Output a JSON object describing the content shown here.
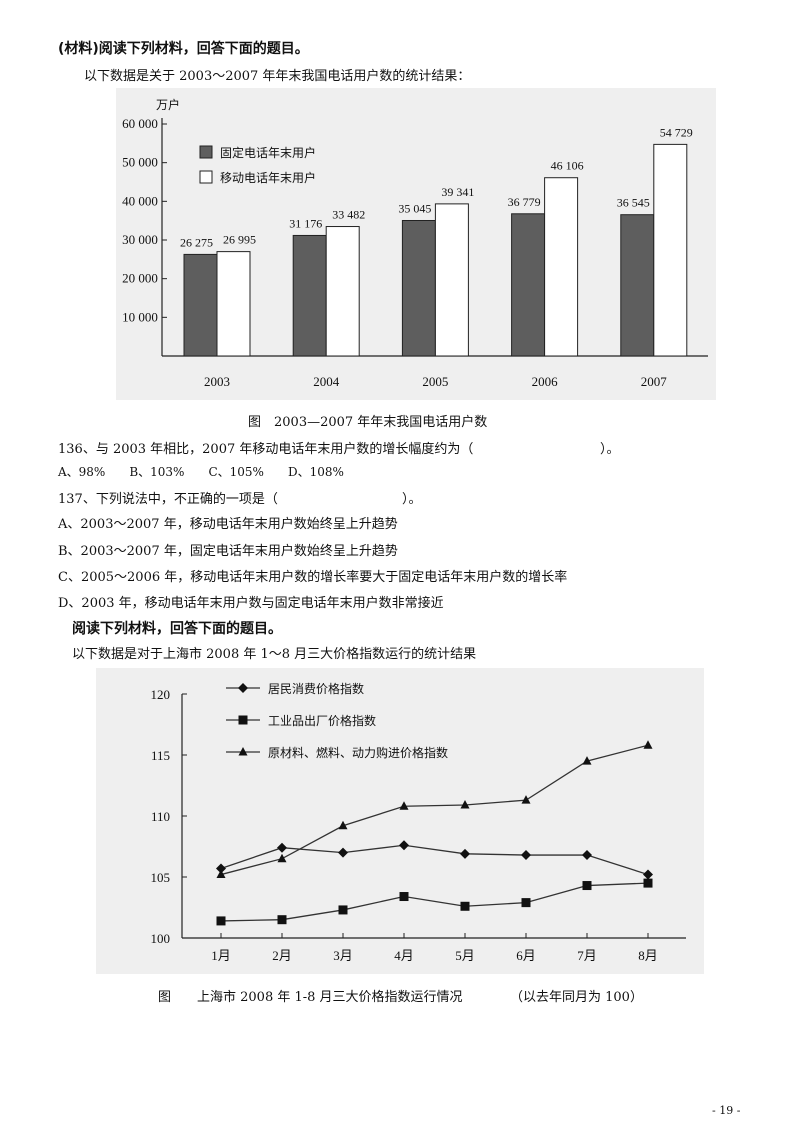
{
  "section1": {
    "heading": "(材料)阅读下列材料，回答下面的题目。",
    "intro": "以下数据是关于 2003～2007 年年末我国电话用户数的统计结果："
  },
  "chart1": {
    "unit": "万户",
    "caption": "图　2003—2007 年年末我国电话用户数"
  },
  "q136": {
    "stem": "136、与 2003 年相比，2007 年移动电话年末用户数的增长幅度约为（",
    "stem_end": "）。",
    "options": "A、98%　　B、103%　　C、105%　　D、108%"
  },
  "q137": {
    "stem": "137、下列说法中，不正确的一项是（",
    "stem_end": "）。",
    "option_a": "A、2003～2007 年，移动电话年末用户数始终呈上升趋势",
    "option_b": "B、2003～2007 年，固定电话年末用户数始终呈上升趋势",
    "option_c": "C、2005～2006 年，移动电话年末用户数的增长率要大于固定电话年末用户数的增长率",
    "option_d": "D、2003 年，移动电话年末用户数与固定电话年末用户数非常接近"
  },
  "section2": {
    "heading": "阅读下列材料，回答下面的题目。",
    "intro": "以下数据是对于上海市 2008 年 1～8 月三大价格指数运行的统计结果"
  },
  "chart2": {
    "caption": "图　　上海市 2008 年 1-8 月三大价格指数运行情况",
    "caption_note": "（以去年同月为 100）"
  },
  "page_number": "- 19 -",
  "chart_data": [
    {
      "type": "bar",
      "categories": [
        "2003",
        "2004",
        "2005",
        "2006",
        "2007"
      ],
      "series": [
        {
          "name": "固定电话年末用户",
          "values": [
            26275,
            31176,
            35045,
            36779,
            36545
          ],
          "labels": [
            "26 275",
            "31 176",
            "35 045",
            "36 779",
            "36 545"
          ],
          "color": "#5e5e5e"
        },
        {
          "name": "移动电话年末用户",
          "values": [
            26995,
            33482,
            39341,
            46106,
            54729
          ],
          "labels": [
            "26 995",
            "33 482",
            "39 341",
            "46 106",
            "54 729"
          ],
          "color": "#ffffff"
        }
      ],
      "ylabel": "万户",
      "ylim": [
        0,
        60000
      ],
      "yticks": [
        10000,
        20000,
        30000,
        40000,
        50000,
        60000
      ],
      "ytick_labels": [
        "10 000",
        "20 000",
        "30 000",
        "40 000",
        "50 000",
        "60 000"
      ],
      "legend": "top-left",
      "grid": false
    },
    {
      "type": "line",
      "categories": [
        "1月",
        "2月",
        "3月",
        "4月",
        "5月",
        "6月",
        "7月",
        "8月"
      ],
      "series": [
        {
          "name": "居民消费价格指数",
          "marker": "diamond",
          "values": [
            105.7,
            107.4,
            107.0,
            107.6,
            106.9,
            106.8,
            106.8,
            105.2
          ]
        },
        {
          "name": "工业品出厂价格指数",
          "marker": "square",
          "values": [
            101.4,
            101.5,
            102.3,
            103.4,
            102.6,
            102.9,
            104.3,
            104.5
          ]
        },
        {
          "name": "原材料、燃料、动力购进价格指数",
          "marker": "triangle",
          "values": [
            105.2,
            106.5,
            109.2,
            110.8,
            110.9,
            111.3,
            114.5,
            115.8
          ]
        }
      ],
      "ylim": [
        100,
        120
      ],
      "yticks": [
        100,
        105,
        110,
        115,
        120
      ],
      "legend": "top-left",
      "grid": false
    }
  ]
}
